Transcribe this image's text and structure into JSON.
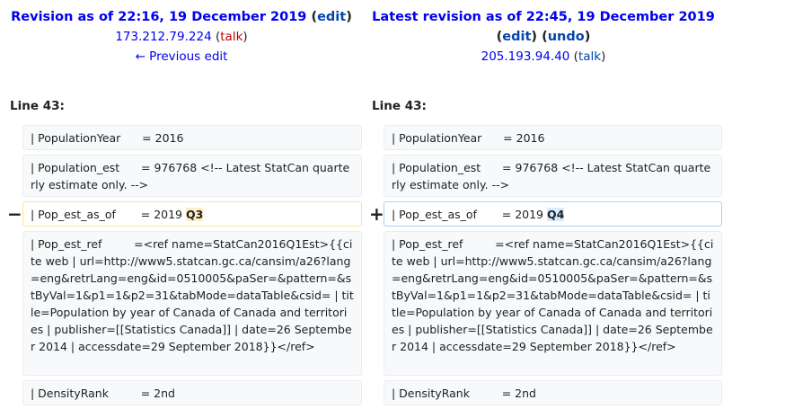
{
  "left": {
    "title": "Revision as of 22:16, 19 December 2019",
    "edit": "edit",
    "user": "173.212.79.224",
    "talk": "talk",
    "prev": "← Previous edit",
    "line": "Line 43:"
  },
  "right": {
    "title": "Latest revision as of 22:45, 19 December 2019",
    "edit": "edit",
    "undo": "undo",
    "user": "205.193.94.40",
    "talk": "talk",
    "line": "Line 43:"
  },
  "markers": {
    "del": "−",
    "add": "+"
  },
  "rows": {
    "r1": "| PopulationYear      = 2016",
    "r2": "| Population_est      = 976768 <!-- Latest StatCan quarterly estimate only. -->",
    "r3_l_prefix": "| Pop_est_as_of       = 2019 ",
    "r3_l_hl": "Q3",
    "r3_r_prefix": "| Pop_est_as_of       = 2019 ",
    "r3_r_hl": "Q4",
    "r4": "| Pop_est_ref         =<ref name=StatCan2016Q1Est>{{cite web | url=http://www5.statcan.gc.ca/cansim/a26?lang=eng&retrLang=eng&id=0510005&paSer=&pattern=&stByVal=1&p1=1&p2=31&tabMode=dataTable&csid= | title=Population by year of Canada of Canada and territories | publisher=[[Statistics Canada]] | date=26 September 2014 | accessdate=29 September 2018}}</ref>",
    "r5": "| DensityRank         = 2nd"
  }
}
